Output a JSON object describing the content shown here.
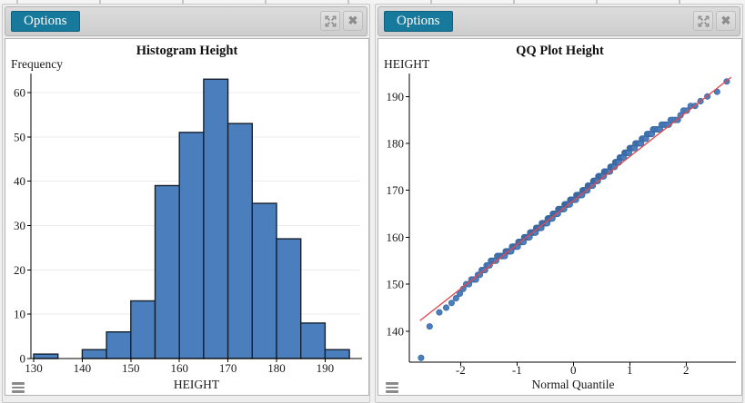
{
  "colors": {
    "accent_teal": "#17799c",
    "bar_fill": "#4a7ebc",
    "bar_stroke": "#17212e",
    "point_fill": "#4a7ebc",
    "point_stroke": "#3a68a2",
    "reference_line_red": "#e04a52",
    "grid_line": "#ebebeb",
    "axis": "#000000"
  },
  "panels": [
    {
      "header": {
        "options_label": "Options"
      },
      "icons": {
        "expand": "expand-arrows-icon",
        "close": "close-x-icon",
        "menu": "hamburger-menu-icon"
      }
    },
    {
      "header": {
        "options_label": "Options"
      },
      "icons": {
        "expand": "expand-arrows-icon",
        "close": "close-x-icon",
        "menu": "hamburger-menu-icon"
      }
    }
  ],
  "chart_data": [
    {
      "type": "bar",
      "subtype": "histogram",
      "title": "Histogram Height",
      "xlabel": "HEIGHT",
      "ylabel": "Frequency",
      "bin_width": 5,
      "bin_starts": [
        130,
        135,
        140,
        145,
        150,
        155,
        160,
        165,
        170,
        175,
        180,
        185,
        190
      ],
      "values": [
        1,
        0,
        2,
        6,
        13,
        39,
        51,
        63,
        53,
        35,
        27,
        8,
        2
      ],
      "xticks": [
        130,
        140,
        150,
        160,
        170,
        180,
        190
      ],
      "yticks": [
        0,
        10,
        20,
        30,
        40,
        50,
        60
      ],
      "xlim": [
        127.5,
        197.5
      ],
      "ylim": [
        0,
        65
      ],
      "grid": "horizontal",
      "legend": "none"
    },
    {
      "type": "scatter",
      "subtype": "qq-plot",
      "title": "QQ Plot Height",
      "xlabel": "Normal Quantile",
      "ylabel": "HEIGHT",
      "n": 300,
      "bin_width": 5,
      "bin_starts": [
        130,
        135,
        140,
        145,
        150,
        155,
        160,
        165,
        170,
        175,
        180,
        185,
        190
      ],
      "bin_counts": [
        1,
        0,
        2,
        6,
        13,
        39,
        51,
        63,
        53,
        35,
        27,
        8,
        2
      ],
      "quantile_method": "blom",
      "xticks": [
        -2,
        -1,
        0,
        1,
        2
      ],
      "yticks": [
        140,
        150,
        160,
        170,
        180,
        190
      ],
      "xlim": [
        -2.95,
        2.95
      ],
      "ylim": [
        132,
        196
      ],
      "reference_line": {
        "slope": 9.4,
        "intercept": 167.8
      },
      "lowest_point": {
        "x": -2.7,
        "y": 134.3
      },
      "highest_point": {
        "x": 2.72,
        "y": 193.2
      },
      "grid": "none",
      "legend": "none"
    }
  ]
}
